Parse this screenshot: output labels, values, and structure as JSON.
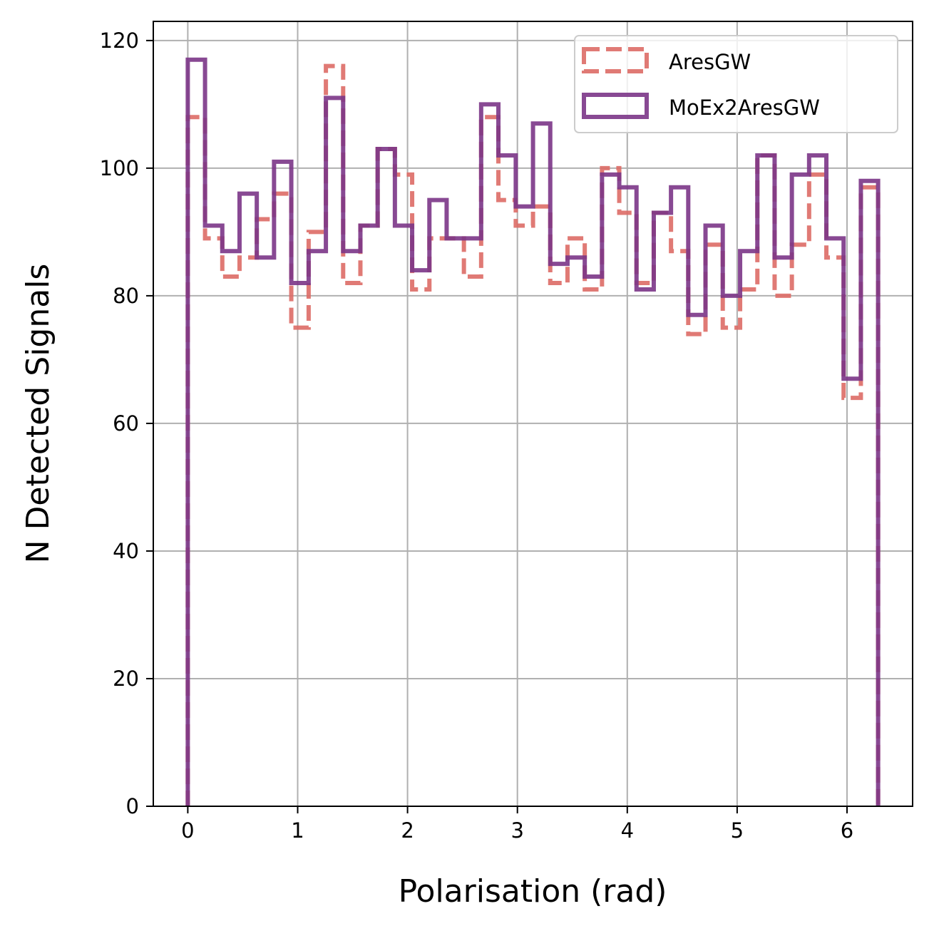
{
  "chart_data": {
    "type": "histogram",
    "xlabel": "Polarisation (rad)",
    "ylabel": "N Detected Signals",
    "xlim": [
      -0.314,
      6.597
    ],
    "ylim": [
      0,
      123
    ],
    "xticks": [
      0,
      1,
      2,
      3,
      4,
      5,
      6
    ],
    "yticks": [
      0,
      20,
      40,
      60,
      80,
      100,
      120
    ],
    "grid": true,
    "legend_position": "top-right",
    "bin_edges": [
      0.0,
      0.157,
      0.314,
      0.471,
      0.628,
      0.785,
      0.942,
      1.1,
      1.257,
      1.414,
      1.571,
      1.728,
      1.885,
      2.042,
      2.199,
      2.356,
      2.513,
      2.67,
      2.827,
      2.985,
      3.142,
      3.299,
      3.456,
      3.613,
      3.77,
      3.927,
      4.084,
      4.241,
      4.398,
      4.555,
      4.712,
      4.869,
      5.027,
      5.184,
      5.341,
      5.498,
      5.655,
      5.812,
      5.969,
      6.126,
      6.283
    ],
    "series": [
      {
        "name": "AresGW",
        "color": "#dd6b66",
        "style": "dashed",
        "values": [
          108,
          89,
          83,
          86,
          92,
          96,
          75,
          90,
          116,
          82,
          91,
          103,
          99,
          81,
          89,
          89,
          83,
          108,
          95,
          91,
          94,
          82,
          89,
          81,
          100,
          93,
          82,
          93,
          87,
          74,
          88,
          75,
          81,
          102,
          80,
          88,
          99,
          86,
          64,
          97
        ]
      },
      {
        "name": "MoEx2AresGW",
        "color": "#7b3587",
        "style": "solid",
        "values": [
          117,
          91,
          87,
          96,
          86,
          101,
          82,
          87,
          111,
          87,
          91,
          103,
          91,
          84,
          95,
          89,
          89,
          110,
          102,
          94,
          107,
          85,
          86,
          83,
          99,
          97,
          81,
          93,
          97,
          77,
          91,
          80,
          87,
          102,
          86,
          99,
          102,
          89,
          67,
          98
        ]
      }
    ]
  }
}
